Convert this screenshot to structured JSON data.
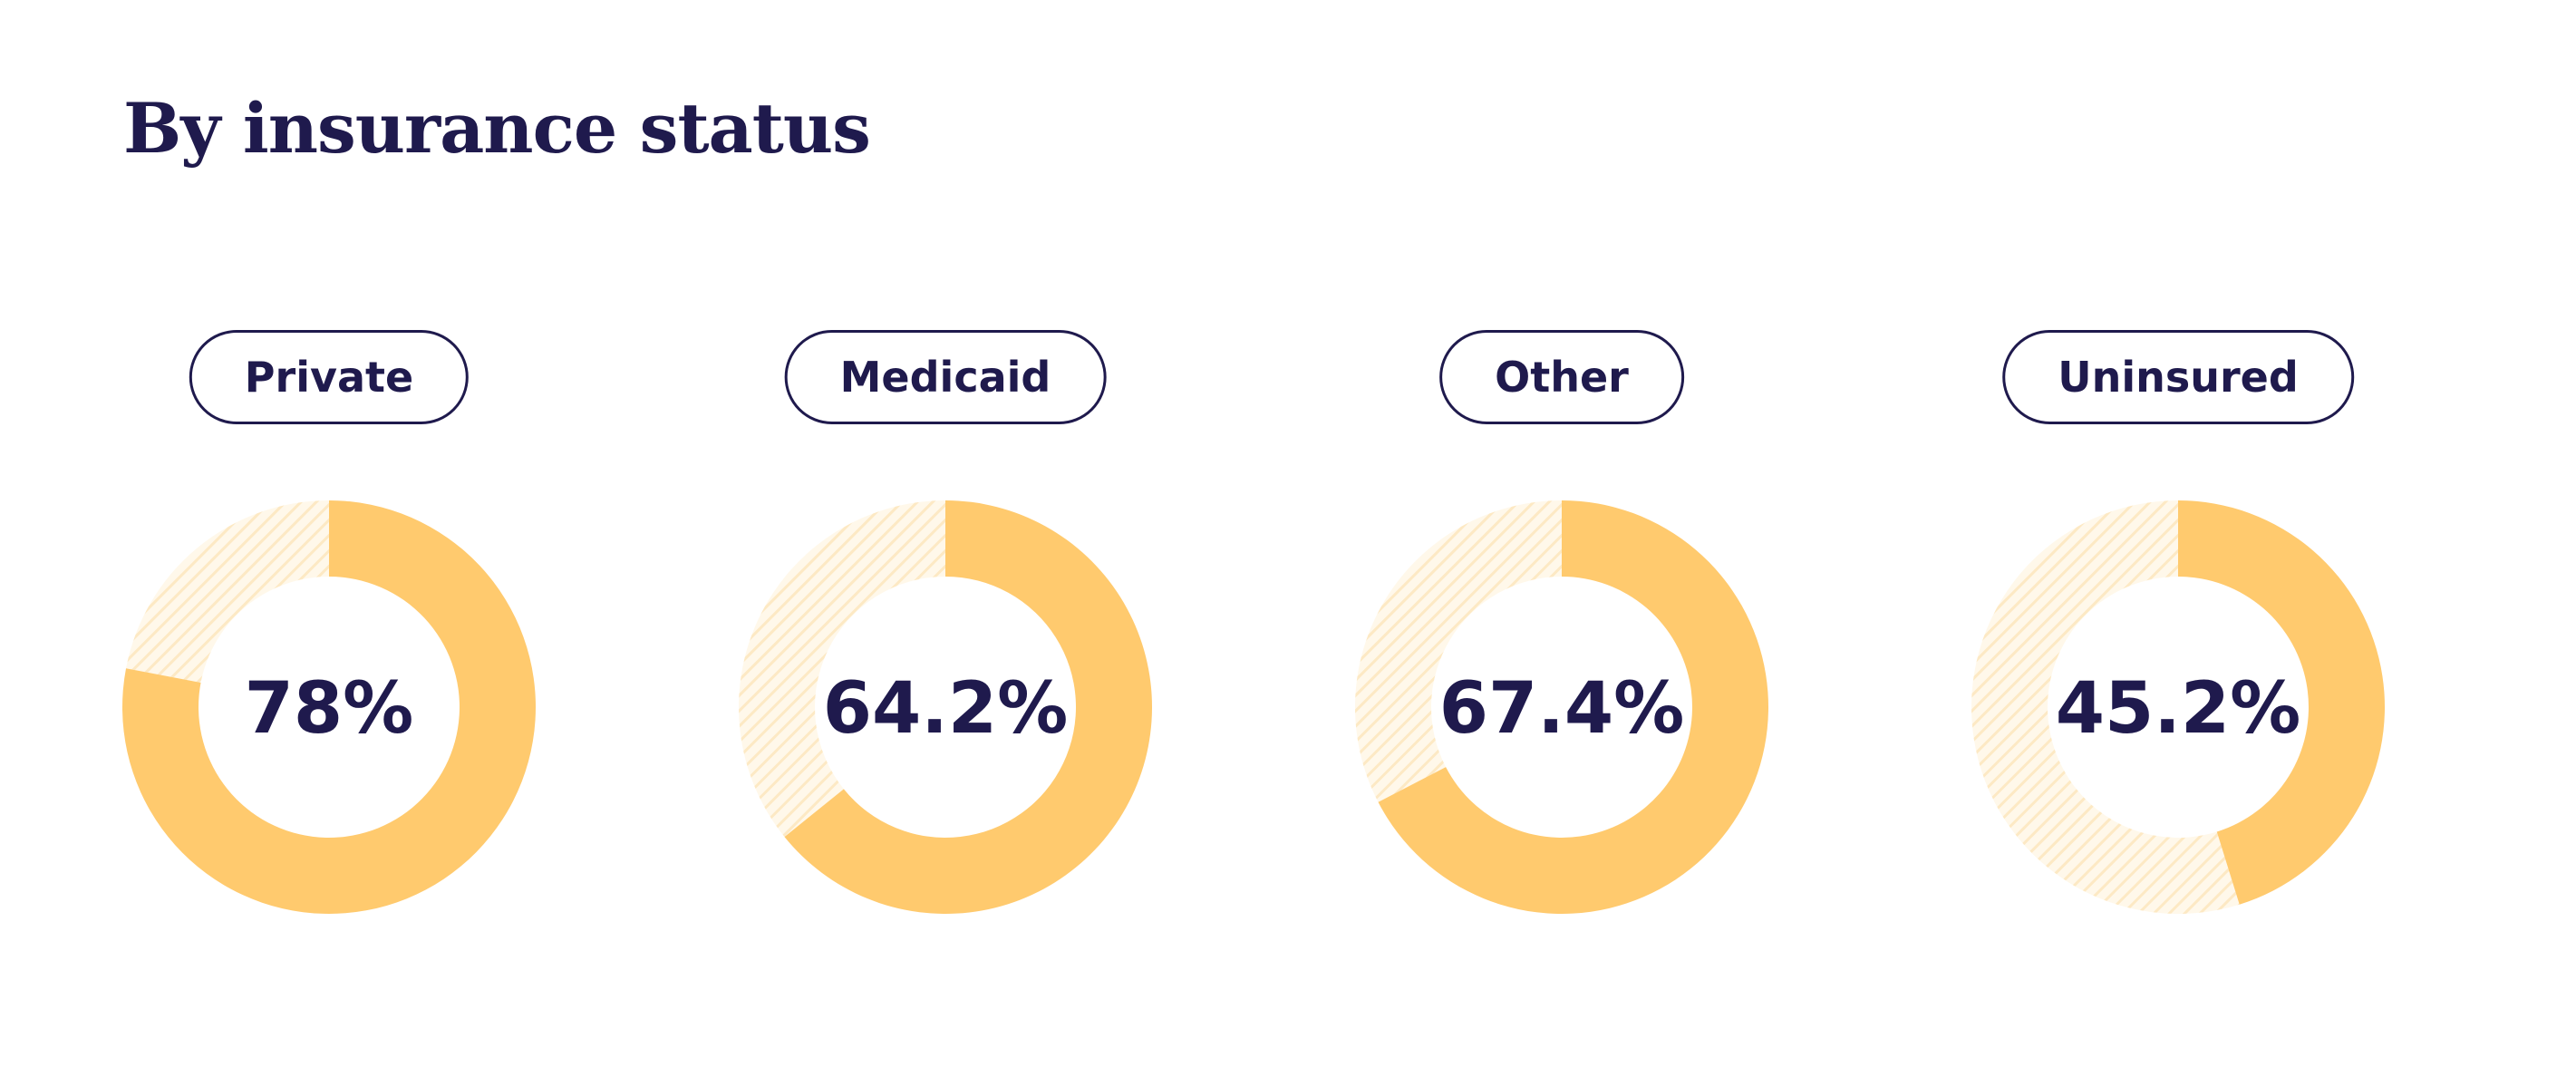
{
  "title": "By insurance status",
  "colors": {
    "filled": "#ffca6e",
    "remainder_hatch": "#fde9c4",
    "text": "#1f1a4d"
  },
  "chart_data": {
    "type": "pie",
    "title": "By insurance status",
    "categories": [
      "Private",
      "Medicaid",
      "Other",
      "Uninsured"
    ],
    "values": [
      78,
      64.2,
      67.4,
      45.2
    ],
    "labels": [
      "78%",
      "64.2%",
      "67.4%",
      "45.2%"
    ],
    "unit": "%",
    "max": 100
  }
}
